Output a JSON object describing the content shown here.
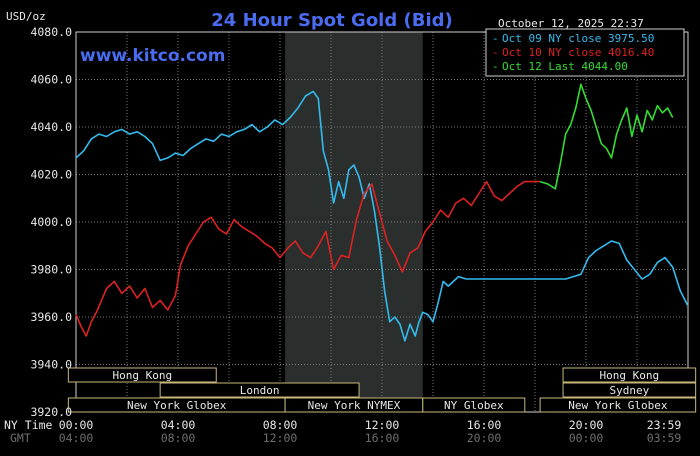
{
  "chart_data": {
    "type": "line",
    "title": "24 Hour Spot Gold (Bid)",
    "brand": "www.kitco.com",
    "timestamp": "October 12, 2025 22:37",
    "y_unit_label": "USD/oz",
    "ylim": [
      3920,
      4080
    ],
    "y_ticks": [
      3920,
      3940,
      3960,
      3980,
      4000,
      4020,
      4040,
      4060,
      4080
    ],
    "y_tick_labels": [
      "3920.0",
      "3940.0",
      "3960.0",
      "3980.0",
      "4000.0",
      "4020.0",
      "4040.0",
      "4060.0",
      "4080.0"
    ],
    "x_unit": "hours (NY Time)",
    "xlim": [
      0,
      24
    ],
    "x_row_labels": {
      "ny": "NY Time",
      "gmt": "GMT"
    },
    "x_ticks": [
      {
        "x": 0,
        "ny": "00:00",
        "gmt": "04:00"
      },
      {
        "x": 4,
        "ny": "04:00",
        "gmt": "08:00"
      },
      {
        "x": 8,
        "ny": "08:00",
        "gmt": "12:00"
      },
      {
        "x": 12,
        "ny": "12:00",
        "gmt": "16:00"
      },
      {
        "x": 16,
        "ny": "16:00",
        "gmt": "20:00"
      },
      {
        "x": 20,
        "ny": "20:00",
        "gmt": "00:00"
      },
      {
        "x": 23.98,
        "ny": "23:59",
        "gmt": "03:59"
      }
    ],
    "shaded_region": [
      8.2,
      13.6
    ],
    "grid": true,
    "legend_position": "top-right",
    "series": [
      {
        "name": "Oct 09 NY close",
        "legend_value": "3975.50",
        "color": "#33bbee",
        "x": [
          0,
          0.3,
          0.6,
          0.9,
          1.2,
          1.5,
          1.8,
          2.1,
          2.4,
          2.7,
          3.0,
          3.3,
          3.6,
          3.9,
          4.2,
          4.5,
          4.8,
          5.1,
          5.4,
          5.7,
          6.0,
          6.3,
          6.6,
          6.9,
          7.2,
          7.5,
          7.8,
          8.1,
          8.4,
          8.7,
          9.0,
          9.3,
          9.5,
          9.7,
          9.9,
          10.1,
          10.3,
          10.5,
          10.7,
          10.9,
          11.1,
          11.3,
          11.5,
          11.7,
          11.9,
          12.1,
          12.3,
          12.5,
          12.7,
          12.9,
          13.1,
          13.3,
          13.45,
          13.6,
          13.8,
          14.0,
          14.2,
          14.4,
          14.6,
          14.8,
          15.0,
          15.3,
          15.6,
          15.9,
          16.2,
          16.5,
          16.8,
          17.1,
          17.4,
          17.7,
          18.0,
          18.3,
          18.6,
          18.9,
          19.2,
          19.5,
          19.8,
          20.1,
          20.4,
          20.7,
          21.0,
          21.3,
          21.6,
          21.9,
          22.2,
          22.5,
          22.8,
          23.1,
          23.4,
          23.7,
          23.98
        ],
        "y": [
          4027,
          4030,
          4035,
          4037,
          4036,
          4038,
          4039,
          4037,
          4038,
          4036,
          4033,
          4026,
          4027,
          4029,
          4028,
          4031,
          4033,
          4035,
          4034,
          4037,
          4036,
          4038,
          4039,
          4041,
          4038,
          4040,
          4043,
          4041,
          4044,
          4048,
          4053,
          4055,
          4052,
          4030,
          4022,
          4008,
          4017,
          4010,
          4022,
          4024,
          4019,
          4010,
          4016,
          4005,
          3990,
          3971,
          3958,
          3960,
          3957,
          3950,
          3957,
          3952,
          3958,
          3962,
          3961,
          3958,
          3966,
          3975,
          3973,
          3975,
          3977,
          3976,
          3976,
          3976,
          3976,
          3976,
          3976,
          3976,
          3976,
          3976,
          3976,
          3976,
          3976,
          3976,
          3976,
          3977,
          3978,
          3985,
          3988,
          3990,
          3992,
          3991,
          3984,
          3980,
          3976,
          3978,
          3983,
          3985,
          3981,
          3971,
          3965
        ]
      },
      {
        "name": "Oct 10 NY close",
        "legend_value": "4016.40",
        "color": "#dd2222",
        "x": [
          0,
          0.2,
          0.4,
          0.6,
          0.8,
          1.0,
          1.2,
          1.5,
          1.8,
          2.1,
          2.4,
          2.7,
          3.0,
          3.3,
          3.6,
          3.9,
          4.1,
          4.4,
          4.7,
          5.0,
          5.3,
          5.6,
          5.9,
          6.2,
          6.5,
          6.8,
          7.1,
          7.4,
          7.7,
          8.0,
          8.3,
          8.6,
          8.9,
          9.2,
          9.5,
          9.8,
          10.1,
          10.4,
          10.7,
          11.0,
          11.3,
          11.6,
          11.9,
          12.2,
          12.5,
          12.8,
          13.1,
          13.4,
          13.7,
          14.0,
          14.3,
          14.6,
          14.9,
          15.2,
          15.5,
          15.8,
          16.1,
          16.4,
          16.7,
          17.0,
          17.3,
          17.6,
          17.9,
          18.2
        ],
        "y": [
          3961,
          3956,
          3952,
          3958,
          3962,
          3967,
          3972,
          3975,
          3970,
          3973,
          3968,
          3972,
          3964,
          3967,
          3963,
          3969,
          3982,
          3990,
          3995,
          4000,
          4002,
          3997,
          3995,
          4001,
          3998,
          3996,
          3994,
          3991,
          3989,
          3985,
          3989,
          3992,
          3987,
          3985,
          3990,
          3996,
          3980,
          3986,
          3985,
          4001,
          4012,
          4016,
          4004,
          3992,
          3986,
          3979,
          3987,
          3989,
          3996,
          4000,
          4005,
          4002,
          4008,
          4010,
          4007,
          4012,
          4017,
          4011,
          4009,
          4012,
          4015,
          4017,
          4017,
          4017
        ]
      },
      {
        "name": "Oct 12 Last",
        "legend_value": "4044.00",
        "color": "#33dd33",
        "x": [
          18.2,
          18.5,
          18.8,
          19.0,
          19.2,
          19.4,
          19.6,
          19.8,
          20.0,
          20.2,
          20.4,
          20.6,
          20.8,
          21.0,
          21.2,
          21.4,
          21.6,
          21.8,
          22.0,
          22.2,
          22.4,
          22.6,
          22.8,
          23.0,
          23.2,
          23.4
        ],
        "y": [
          4017,
          4016,
          4014,
          4025,
          4037,
          4041,
          4048,
          4058,
          4052,
          4047,
          4040,
          4033,
          4031,
          4027,
          4037,
          4043,
          4048,
          4036,
          4045,
          4038,
          4047,
          4043,
          4049,
          4046,
          4048,
          4044
        ]
      }
    ],
    "sessions": [
      {
        "label": "Hong Kong",
        "start": -0.3,
        "end": 5.5,
        "row": 0
      },
      {
        "label": "London",
        "start": 3.3,
        "end": 11.1,
        "row": 1
      },
      {
        "label": "New York Globex",
        "start": -0.3,
        "end": 8.2,
        "row": 2
      },
      {
        "label": "New York NYMEX",
        "start": 8.2,
        "end": 13.6,
        "row": 2
      },
      {
        "label": "NY Globex",
        "start": 13.6,
        "end": 17.6,
        "row": 2
      },
      {
        "label": "Hong Kong",
        "start": 19.1,
        "end": 24.3,
        "row": 0
      },
      {
        "label": "Sydney",
        "start": 19.1,
        "end": 24.3,
        "row": 1
      },
      {
        "label": "New York Globex",
        "start": 18.2,
        "end": 24.3,
        "row": 2
      }
    ]
  }
}
